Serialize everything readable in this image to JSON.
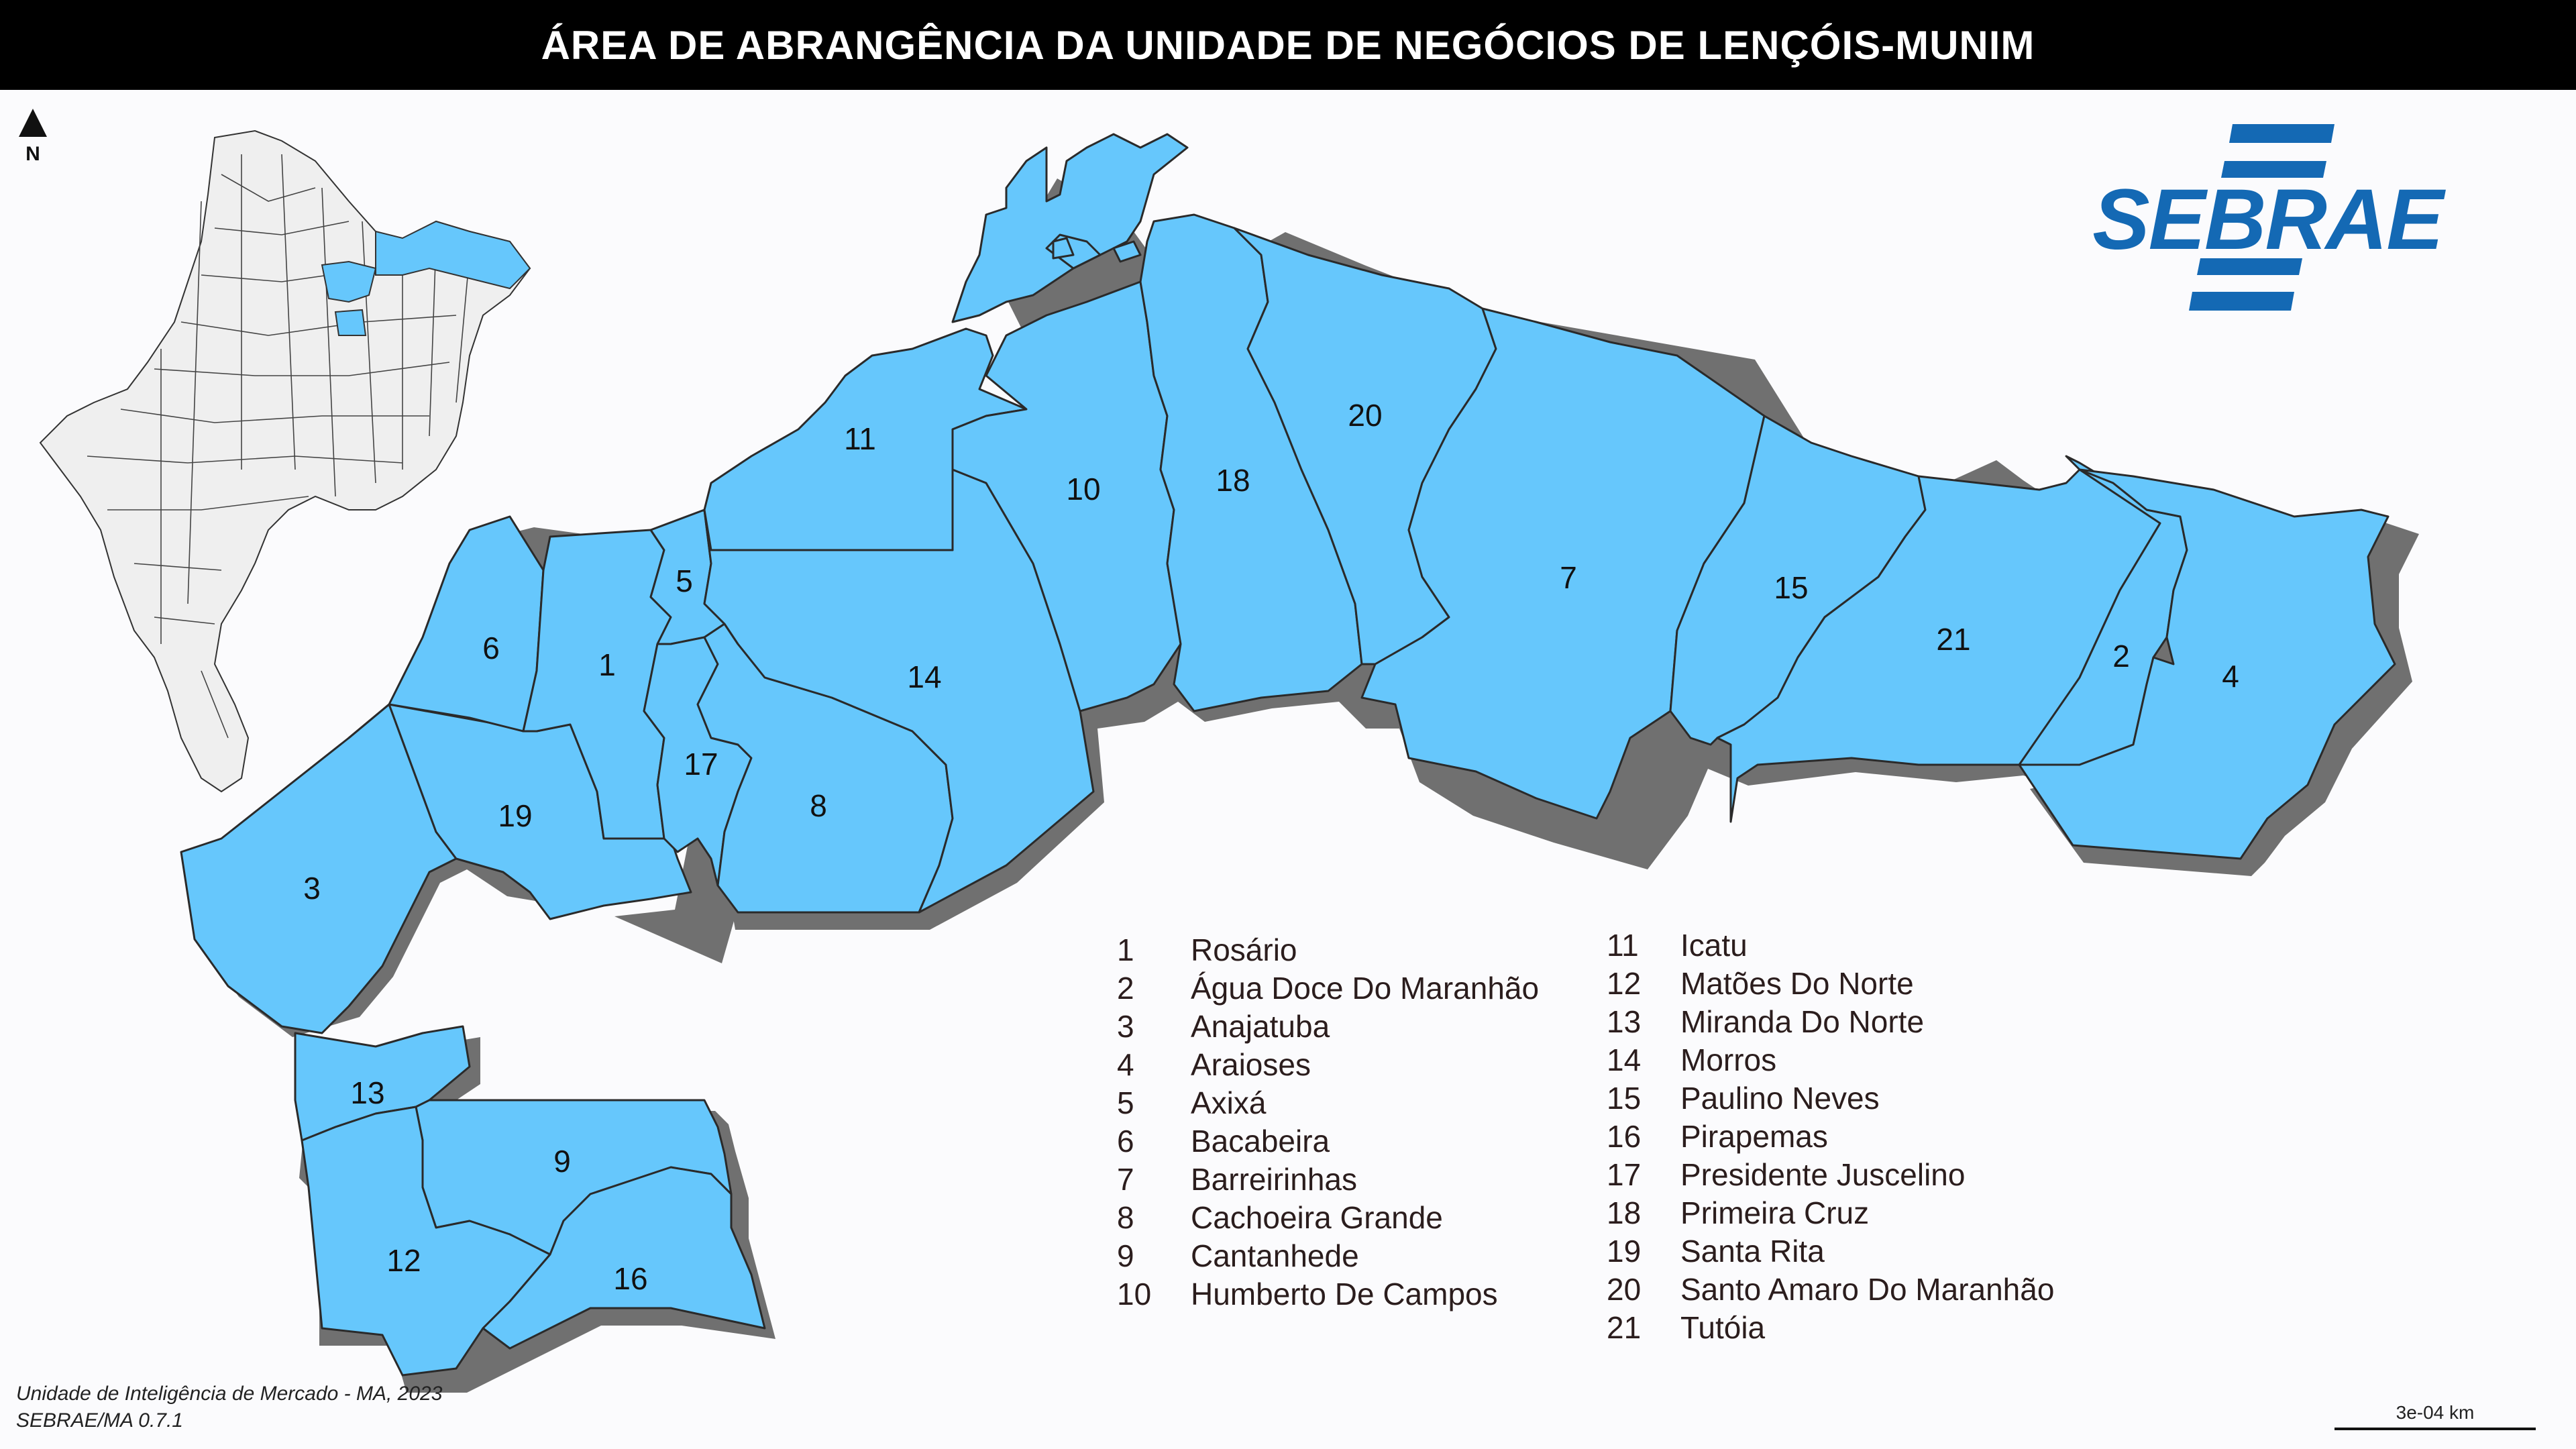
{
  "title": "ÁREA DE ABRANGÊNCIA DA UNIDADE DE NEGÓCIOS DE LENÇÓIS-MUNIM",
  "north_label": "N",
  "logo_text": "SEBRAE",
  "logo_color": "#1469b4",
  "fill_color": "#66c7fc",
  "labels": [
    "1",
    "2",
    "3",
    "4",
    "5",
    "6",
    "7",
    "8",
    "9",
    "10",
    "11",
    "12",
    "13",
    "14",
    "15",
    "16",
    "17",
    "18",
    "19",
    "20",
    "21"
  ],
  "legend_left": [
    {
      "num": "1",
      "name": "Rosário"
    },
    {
      "num": "2",
      "name": "Água Doce Do Maranhão"
    },
    {
      "num": "3",
      "name": "Anajatuba"
    },
    {
      "num": "4",
      "name": "Araioses"
    },
    {
      "num": "5",
      "name": "Axixá"
    },
    {
      "num": "6",
      "name": "Bacabeira"
    },
    {
      "num": "7",
      "name": "Barreirinhas"
    },
    {
      "num": "8",
      "name": "Cachoeira Grande"
    },
    {
      "num": "9",
      "name": "Cantanhede"
    },
    {
      "num": "10",
      "name": "Humberto De Campos"
    }
  ],
  "legend_right": [
    {
      "num": "11",
      "name": "Icatu"
    },
    {
      "num": "12",
      "name": "Matões Do Norte"
    },
    {
      "num": "13",
      "name": "Miranda Do Norte"
    },
    {
      "num": "14",
      "name": "Morros"
    },
    {
      "num": "15",
      "name": "Paulino Neves"
    },
    {
      "num": "16",
      "name": "Pirapemas"
    },
    {
      "num": "17",
      "name": "Presidente Juscelino"
    },
    {
      "num": "18",
      "name": "Primeira Cruz"
    },
    {
      "num": "19",
      "name": "Santa Rita"
    },
    {
      "num": "20",
      "name": "Santo Amaro Do Maranhão"
    },
    {
      "num": "21",
      "name": "Tutóia"
    }
  ],
  "credits": {
    "line1": "Unidade de Inteligência de Mercado - MA, 2023",
    "line2": "SEBRAE/MA 0.7.1"
  },
  "scale_label": "3e-04 km"
}
